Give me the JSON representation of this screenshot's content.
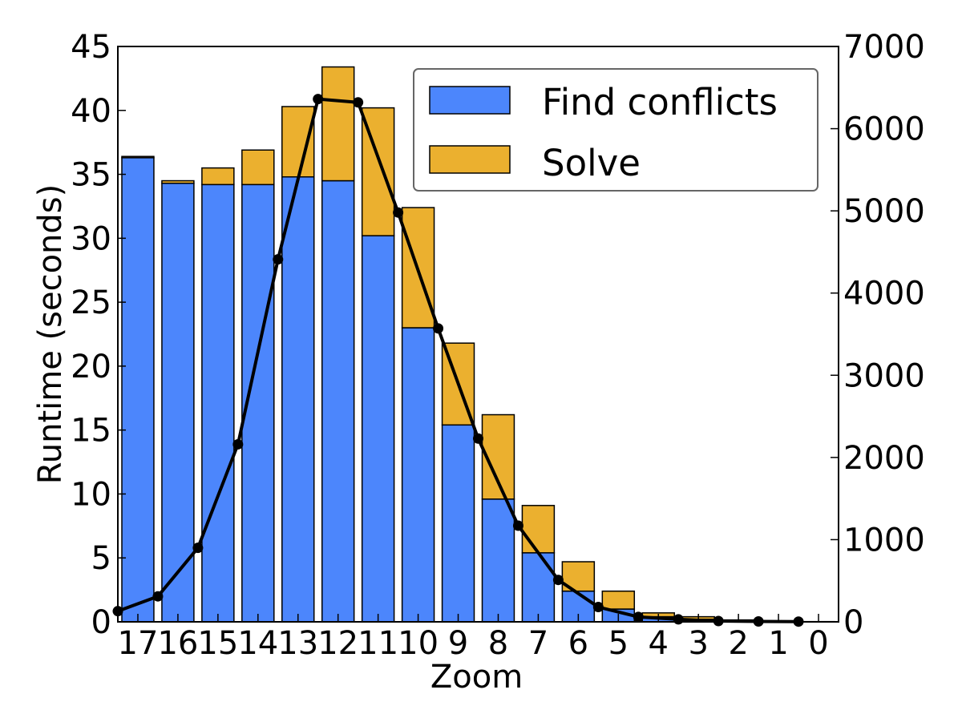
{
  "chart_data": {
    "type": "bar",
    "stacked": true,
    "secondary_axis_line": true,
    "categories": [
      "17",
      "16",
      "15",
      "14",
      "13",
      "12",
      "11",
      "10",
      "9",
      "8",
      "7",
      "6",
      "5",
      "4",
      "3",
      "2",
      "1",
      "0"
    ],
    "series": [
      {
        "name": "Find conflicts",
        "color": "#4c86fc",
        "values": [
          36.3,
          34.3,
          34.2,
          34.2,
          34.8,
          34.5,
          30.2,
          23.0,
          15.4,
          9.6,
          5.4,
          2.4,
          1.0,
          0.4,
          0.2,
          0.1,
          0.05,
          0.02
        ]
      },
      {
        "name": "Solve",
        "color": "#ebb02f",
        "values": [
          0.1,
          0.2,
          1.3,
          2.7,
          5.5,
          8.9,
          10.0,
          9.4,
          6.4,
          6.6,
          3.7,
          2.3,
          1.4,
          0.3,
          0.2,
          0.05,
          0.03,
          0.0
        ]
      }
    ],
    "line": {
      "axis": "right",
      "color": "#000000",
      "values": [
        130,
        310,
        900,
        2160,
        4410,
        6360,
        6320,
        4980,
        3570,
        2230,
        1170,
        510,
        180,
        60,
        30,
        10,
        5,
        3
      ]
    },
    "xlabel": "Zoom",
    "ylabel": "Runtime (seconds)",
    "ylim": [
      0,
      45
    ],
    "y_ticks": [
      "0",
      "5",
      "10",
      "15",
      "20",
      "25",
      "30",
      "35",
      "40",
      "45"
    ],
    "y2lim": [
      0,
      7000
    ],
    "y2_ticks": [
      "0",
      "1000",
      "2000",
      "3000",
      "4000",
      "5000",
      "6000",
      "7000"
    ],
    "legend": {
      "placement": "top-right",
      "entries": [
        "Find conflicts",
        "Solve"
      ]
    }
  }
}
